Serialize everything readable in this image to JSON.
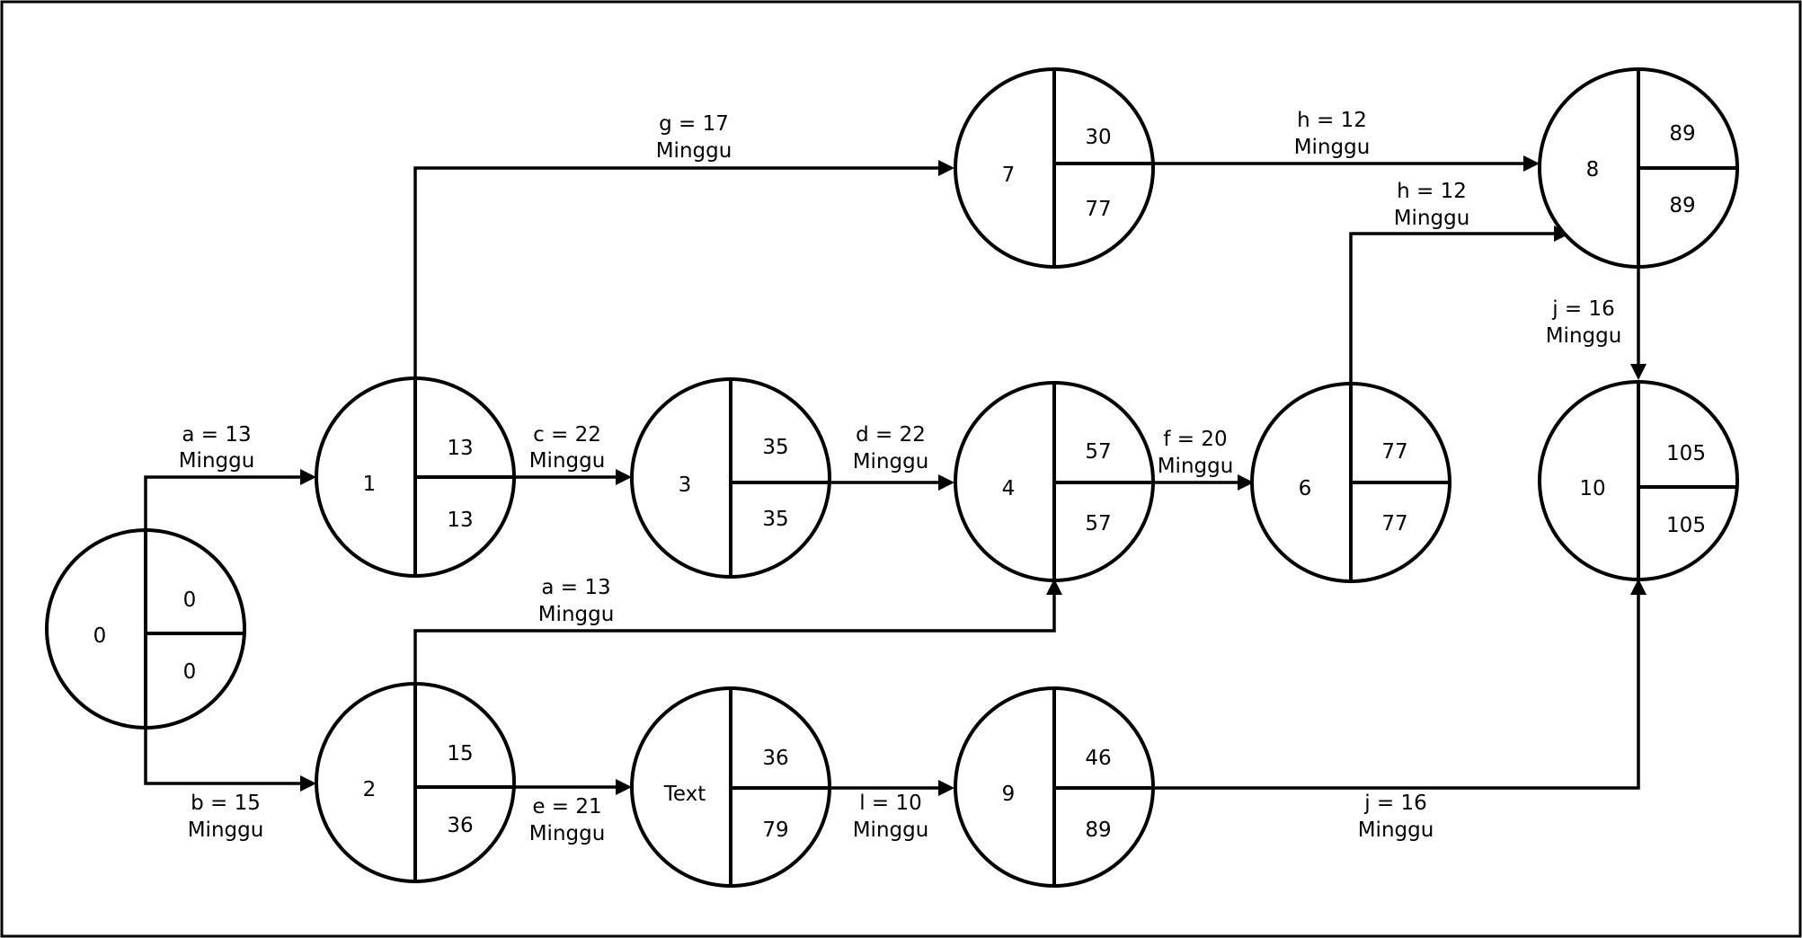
{
  "nodes": [
    {
      "id": "0",
      "label": "0",
      "top": "0",
      "bottom": "0"
    },
    {
      "id": "1",
      "label": "1",
      "top": "13",
      "bottom": "13"
    },
    {
      "id": "2",
      "label": "2",
      "top": "15",
      "bottom": "36"
    },
    {
      "id": "3",
      "label": "3",
      "top": "35",
      "bottom": "35"
    },
    {
      "id": "text",
      "label": "Text",
      "top": "36",
      "bottom": "79"
    },
    {
      "id": "4",
      "label": "4",
      "top": "57",
      "bottom": "57"
    },
    {
      "id": "9",
      "label": "9",
      "top": "46",
      "bottom": "89"
    },
    {
      "id": "7",
      "label": "7",
      "top": "30",
      "bottom": "77"
    },
    {
      "id": "6",
      "label": "6",
      "top": "77",
      "bottom": "77"
    },
    {
      "id": "8",
      "label": "8",
      "top": "89",
      "bottom": "89"
    },
    {
      "id": "10",
      "label": "10",
      "top": "105",
      "bottom": "105"
    }
  ],
  "edges": [
    {
      "from": "0",
      "to": "1",
      "name": "a = 13",
      "unit": "Minggu"
    },
    {
      "from": "0",
      "to": "2",
      "name": "b = 15",
      "unit": "Minggu"
    },
    {
      "from": "1",
      "to": "7",
      "name": "g = 17",
      "unit": "Minggu"
    },
    {
      "from": "1",
      "to": "3",
      "name": "c = 22",
      "unit": "Minggu"
    },
    {
      "from": "3",
      "to": "4",
      "name": "d = 22",
      "unit": "Minggu"
    },
    {
      "from": "2",
      "to": "4",
      "name": "a = 13",
      "unit": "Minggu"
    },
    {
      "from": "2",
      "to": "text",
      "name": "e = 21",
      "unit": "Minggu"
    },
    {
      "from": "text",
      "to": "9",
      "name": "l = 10",
      "unit": "Minggu"
    },
    {
      "from": "4",
      "to": "6",
      "name": "f = 20",
      "unit": "Minggu"
    },
    {
      "from": "7",
      "to": "8",
      "name": "h = 12",
      "unit": "Minggu"
    },
    {
      "from": "6",
      "to": "8",
      "name": "h = 12",
      "unit": "Minggu"
    },
    {
      "from": "8",
      "to": "10",
      "name": "j = 16",
      "unit": "Minggu"
    },
    {
      "from": "9",
      "to": "10",
      "name": "j = 16",
      "unit": "Minggu"
    }
  ]
}
